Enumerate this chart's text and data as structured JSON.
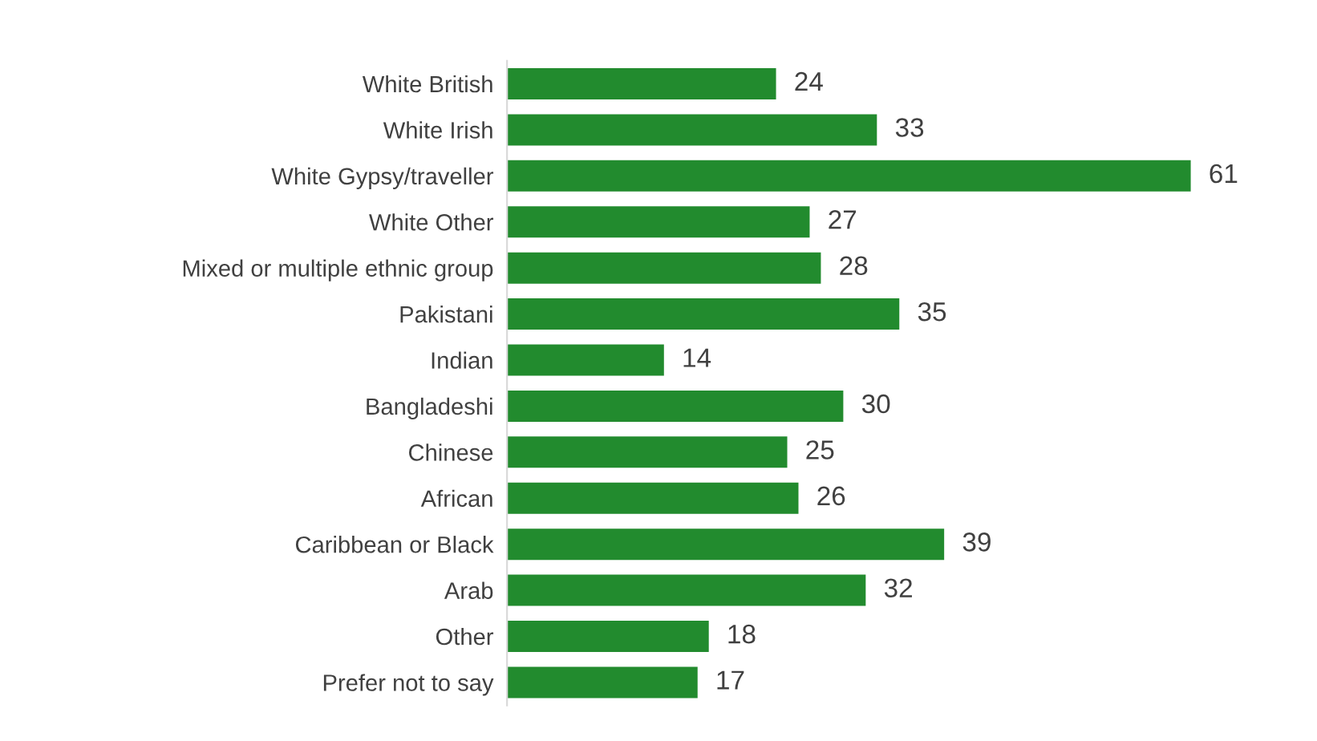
{
  "chart_data": {
    "type": "bar",
    "orientation": "horizontal",
    "categories": [
      "White British",
      "White Irish",
      "White Gypsy/traveller",
      "White Other",
      "Mixed or multiple ethnic group",
      "Pakistani",
      "Indian",
      "Bangladeshi",
      "Chinese",
      "African",
      "Caribbean or Black",
      "Arab",
      "Other",
      "Prefer not to say"
    ],
    "values": [
      24,
      33,
      61,
      27,
      28,
      35,
      14,
      30,
      25,
      26,
      39,
      32,
      18,
      17
    ],
    "color": "#228b2e",
    "data_labels": true,
    "grid": false,
    "legend": false
  }
}
